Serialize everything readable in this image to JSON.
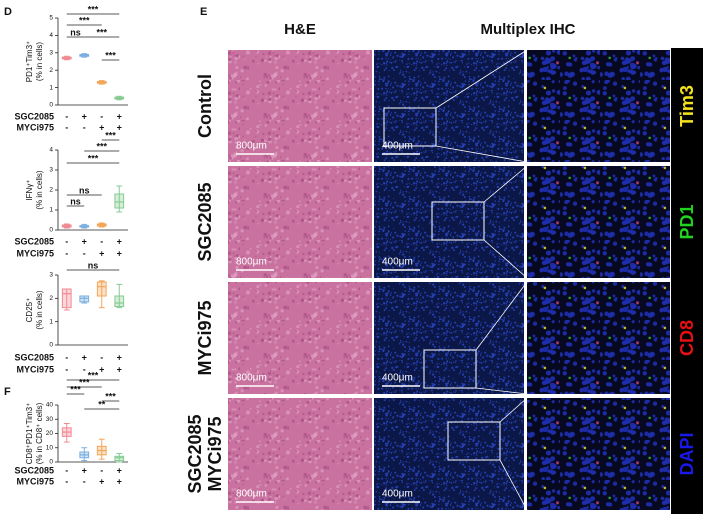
{
  "panel_letters": [
    "D",
    "E",
    "F"
  ],
  "chart_data": [
    {
      "type": "box",
      "y_label": [
        "PD1⁺Tim3⁺",
        "(% in cells)"
      ],
      "ylim": [
        0,
        5
      ],
      "yticks": [
        0,
        1,
        2,
        3,
        4,
        5
      ],
      "colors": [
        "#f08a92",
        "#7aaee0",
        "#f2a65a",
        "#86cc92"
      ],
      "boxes": [
        {
          "min": 2.6,
          "q1": 2.65,
          "median": 2.7,
          "q3": 2.75,
          "max": 2.8
        },
        {
          "min": 2.75,
          "q1": 2.8,
          "median": 2.85,
          "q3": 2.9,
          "max": 2.95
        },
        {
          "min": 1.2,
          "q1": 1.25,
          "median": 1.3,
          "q3": 1.35,
          "max": 1.4
        },
        {
          "min": 0.3,
          "q1": 0.35,
          "median": 0.4,
          "q3": 0.45,
          "max": 0.5
        }
      ],
      "conditions": [
        {
          "name": "SGC2085",
          "signs": [
            "-",
            "+",
            "-",
            "+"
          ]
        },
        {
          "name": "MYCi975",
          "signs": [
            "-",
            "-",
            "+",
            "+"
          ]
        }
      ],
      "significance": [
        "***",
        "***",
        "ns",
        "***",
        "***"
      ]
    },
    {
      "type": "box",
      "y_label": [
        "IFNγ⁺",
        "(% in cells)"
      ],
      "ylim": [
        0,
        4
      ],
      "yticks": [
        0,
        1,
        2,
        3,
        4
      ],
      "colors": [
        "#f08a92",
        "#7aaee0",
        "#f2a65a",
        "#86cc92"
      ],
      "boxes": [
        {
          "min": 0.1,
          "q1": 0.15,
          "median": 0.2,
          "q3": 0.25,
          "max": 0.3
        },
        {
          "min": 0.1,
          "q1": 0.15,
          "median": 0.2,
          "q3": 0.22,
          "max": 0.28
        },
        {
          "min": 0.15,
          "q1": 0.2,
          "median": 0.25,
          "q3": 0.3,
          "max": 0.35
        },
        {
          "min": 0.9,
          "q1": 1.1,
          "median": 1.4,
          "q3": 1.8,
          "max": 2.2
        }
      ],
      "conditions": [
        {
          "name": "SGC2085",
          "signs": [
            "-",
            "+",
            "-",
            "+"
          ]
        },
        {
          "name": "MYCi975",
          "signs": [
            "-",
            "-",
            "+",
            "+"
          ]
        }
      ],
      "significance": [
        "***",
        "***",
        "***",
        "ns",
        "ns"
      ]
    },
    {
      "type": "box",
      "y_label": [
        "CD25⁺",
        "(% in cells)"
      ],
      "ylim": [
        0,
        3
      ],
      "yticks": [
        0,
        1,
        2,
        3
      ],
      "colors": [
        "#f08a92",
        "#7aaee0",
        "#f2a65a",
        "#86cc92"
      ],
      "boxes": [
        {
          "min": 1.5,
          "q1": 1.6,
          "median": 2.2,
          "q3": 2.4,
          "max": 2.4
        },
        {
          "min": 1.8,
          "q1": 1.85,
          "median": 2.0,
          "q3": 2.1,
          "max": 2.1
        },
        {
          "min": 1.6,
          "q1": 2.1,
          "median": 2.5,
          "q3": 2.7,
          "max": 2.75
        },
        {
          "min": 1.6,
          "q1": 1.65,
          "median": 1.8,
          "q3": 2.1,
          "max": 2.6
        }
      ],
      "conditions": [
        {
          "name": "SGC2085",
          "signs": [
            "-",
            "+",
            "-",
            "+"
          ]
        },
        {
          "name": "MYCi975",
          "signs": [
            "-",
            "-",
            "+",
            "+"
          ]
        }
      ],
      "significance": [
        "ns"
      ]
    },
    {
      "type": "box",
      "y_label": [
        "CD8⁺PD1⁺Tim3⁺",
        "(% in CD8⁺ cells)"
      ],
      "ylim": [
        0,
        40
      ],
      "yticks": [
        0,
        10,
        20,
        30,
        40
      ],
      "colors": [
        "#f08a92",
        "#7aaee0",
        "#f2a65a",
        "#86cc92"
      ],
      "boxes": [
        {
          "min": 14,
          "q1": 18,
          "median": 21,
          "q3": 24,
          "max": 27
        },
        {
          "min": 1,
          "q1": 3,
          "median": 5,
          "q3": 7,
          "max": 10
        },
        {
          "min": 2,
          "q1": 5,
          "median": 8,
          "q3": 11,
          "max": 16
        },
        {
          "min": 0,
          "q1": 1,
          "median": 3,
          "q3": 4,
          "max": 6
        }
      ],
      "conditions": [
        {
          "name": "SGC2085",
          "signs": [
            "-",
            "+",
            "-",
            "+"
          ]
        },
        {
          "name": "MYCi975",
          "signs": [
            "-",
            "-",
            "+",
            "+"
          ]
        }
      ],
      "significance": [
        "***",
        "***",
        "***",
        "***",
        "**"
      ]
    }
  ],
  "image_panel": {
    "columns": [
      "H&E",
      "Multiplex IHC"
    ],
    "rows": [
      [
        "Control"
      ],
      [
        "SGC2085"
      ],
      [
        "MYCi975"
      ],
      [
        "SGC2085",
        "MYCi975"
      ]
    ],
    "scale_bars": [
      "800μm",
      "400μm"
    ],
    "channels": [
      {
        "name": "Tim3",
        "color": "#f4e21c"
      },
      {
        "name": "PD1",
        "color": "#1fd31f"
      },
      {
        "name": "CD8",
        "color": "#e81010"
      },
      {
        "name": "DAPI",
        "color": "#1a1ae8"
      }
    ]
  }
}
